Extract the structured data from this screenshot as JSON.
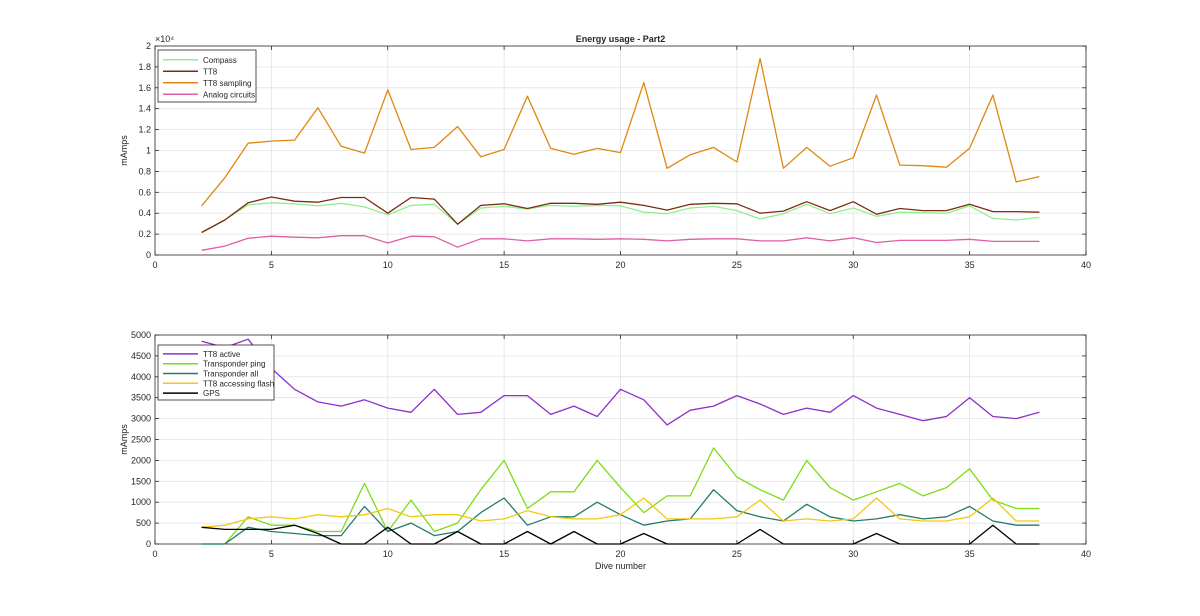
{
  "chart_data": [
    {
      "type": "line",
      "title": "Energy usage - Part2",
      "xlabel": "",
      "ylabel": "mAmps",
      "y_exponent_label": "×10⁴",
      "xlim": [
        0,
        40
      ],
      "ylim": [
        0,
        20000
      ],
      "xticks": [
        0,
        5,
        10,
        15,
        20,
        25,
        30,
        35,
        40
      ],
      "xtick_labels": [
        "0",
        "5",
        "10",
        "15",
        "20",
        "25",
        "30",
        "35",
        "40"
      ],
      "yticks": [
        0,
        2000,
        4000,
        6000,
        8000,
        10000,
        12000,
        14000,
        16000,
        18000,
        20000
      ],
      "ytick_labels": [
        "0",
        "0.2",
        "0.4",
        "0.6",
        "0.8",
        "1",
        "1.2",
        "1.4",
        "1.6",
        "1.8",
        "2"
      ],
      "grid": true,
      "legend_position": "top-left",
      "x": [
        2,
        3,
        4,
        5,
        6,
        7,
        8,
        9,
        10,
        11,
        12,
        13,
        14,
        15,
        16,
        17,
        18,
        19,
        20,
        21,
        22,
        23,
        24,
        25,
        26,
        27,
        28,
        29,
        30,
        31,
        32,
        33,
        34,
        35,
        36,
        37,
        38
      ],
      "series": [
        {
          "name": "Compass",
          "color": "#90ee90",
          "values": [
            2150,
            3350,
            4800,
            5000,
            4900,
            4700,
            4950,
            4600,
            3850,
            4750,
            4850,
            2950,
            4500,
            4650,
            4400,
            4750,
            4650,
            4750,
            4700,
            4100,
            3950,
            4500,
            4650,
            4250,
            3450,
            3950,
            4850,
            3950,
            4500,
            3700,
            4100,
            4050,
            4000,
            4700,
            3500,
            3350,
            3600
          ]
        },
        {
          "name": "TT8",
          "color": "#7b2d12",
          "values": [
            2150,
            3350,
            5000,
            5550,
            5150,
            5050,
            5500,
            5500,
            4000,
            5500,
            5350,
            2950,
            4750,
            4900,
            4450,
            4950,
            4950,
            4850,
            5050,
            4750,
            4300,
            4850,
            4950,
            4900,
            4000,
            4200,
            5100,
            4250,
            5100,
            3900,
            4450,
            4250,
            4250,
            4850,
            4150,
            4150,
            4100
          ]
        },
        {
          "name": "TT8 sampling",
          "color": "#e0870f",
          "values": [
            4700,
            7400,
            10700,
            10900,
            11000,
            14100,
            10400,
            9750,
            15800,
            10100,
            10300,
            12300,
            9400,
            10100,
            15200,
            10200,
            9650,
            10200,
            9800,
            16500,
            8300,
            9600,
            10300,
            8900,
            18800,
            8300,
            10300,
            8500,
            9300,
            15300,
            8600,
            8550,
            8400,
            10200,
            15300,
            7000,
            7500
          ]
        },
        {
          "name": "Analog circuits",
          "color": "#e05fa3",
          "values": [
            450,
            850,
            1600,
            1800,
            1700,
            1650,
            1850,
            1850,
            1150,
            1800,
            1750,
            750,
            1550,
            1550,
            1350,
            1550,
            1550,
            1500,
            1550,
            1500,
            1350,
            1500,
            1550,
            1550,
            1350,
            1350,
            1650,
            1350,
            1650,
            1200,
            1400,
            1400,
            1400,
            1500,
            1300,
            1300,
            1300
          ]
        }
      ]
    },
    {
      "type": "line",
      "title": "",
      "xlabel": "Dive number",
      "ylabel": "mAmps",
      "xlim": [
        0,
        40
      ],
      "ylim": [
        0,
        5000
      ],
      "xticks": [
        0,
        5,
        10,
        15,
        20,
        25,
        30,
        35,
        40
      ],
      "xtick_labels": [
        "0",
        "5",
        "10",
        "15",
        "20",
        "25",
        "30",
        "35",
        "40"
      ],
      "yticks": [
        0,
        500,
        1000,
        1500,
        2000,
        2500,
        3000,
        3500,
        4000,
        4500,
        5000
      ],
      "ytick_labels": [
        "0",
        "500",
        "1000",
        "1500",
        "2000",
        "2500",
        "3000",
        "3500",
        "4000",
        "4500",
        "5000"
      ],
      "grid": true,
      "legend_position": "top-left",
      "x": [
        2,
        3,
        4,
        5,
        6,
        7,
        8,
        9,
        10,
        11,
        12,
        13,
        14,
        15,
        16,
        17,
        18,
        19,
        20,
        21,
        22,
        23,
        24,
        25,
        26,
        27,
        28,
        29,
        30,
        31,
        32,
        33,
        34,
        35,
        36,
        37,
        38
      ],
      "series": [
        {
          "name": "TT8 active",
          "color": "#8b2fc9",
          "values": [
            4850,
            4700,
            4900,
            4200,
            3700,
            3400,
            3300,
            3450,
            3250,
            3150,
            3700,
            3100,
            3150,
            3550,
            3550,
            3100,
            3300,
            3050,
            3700,
            3450,
            2850,
            3200,
            3300,
            3550,
            3350,
            3100,
            3250,
            3150,
            3550,
            3250,
            3100,
            2950,
            3050,
            3500,
            3050,
            3000,
            3150
          ]
        },
        {
          "name": "Transponder ping",
          "color": "#7cdc14",
          "values": [
            0,
            0,
            650,
            450,
            450,
            300,
            300,
            1450,
            300,
            1050,
            300,
            500,
            1300,
            2000,
            850,
            1250,
            1250,
            2000,
            1350,
            750,
            1150,
            1150,
            2300,
            1600,
            1300,
            1050,
            2000,
            1350,
            1050,
            1250,
            1450,
            1150,
            1350,
            1800,
            1050,
            850,
            850
          ]
        },
        {
          "name": "Transponder all",
          "color": "#257a6e",
          "values": [
            0,
            0,
            400,
            300,
            250,
            200,
            200,
            900,
            300,
            500,
            200,
            300,
            750,
            1100,
            450,
            650,
            650,
            1000,
            700,
            450,
            550,
            600,
            1300,
            800,
            650,
            550,
            950,
            650,
            550,
            600,
            700,
            600,
            650,
            900,
            550,
            450,
            450
          ]
        },
        {
          "name": "TT8 accessing flash",
          "color": "#f2c90f",
          "values": [
            400,
            450,
            600,
            650,
            600,
            700,
            650,
            700,
            850,
            650,
            700,
            700,
            550,
            600,
            800,
            650,
            600,
            600,
            700,
            1100,
            600,
            600,
            600,
            650,
            1050,
            550,
            600,
            550,
            600,
            1100,
            600,
            550,
            550,
            650,
            1100,
            550,
            550
          ]
        },
        {
          "name": "GPS",
          "color": "#000000",
          "values": [
            400,
            350,
            350,
            350,
            450,
            250,
            0,
            0,
            400,
            0,
            0,
            300,
            0,
            0,
            300,
            0,
            300,
            0,
            0,
            250,
            0,
            0,
            0,
            0,
            350,
            0,
            0,
            0,
            0,
            250,
            0,
            0,
            0,
            0,
            450,
            0,
            0
          ]
        }
      ]
    }
  ]
}
